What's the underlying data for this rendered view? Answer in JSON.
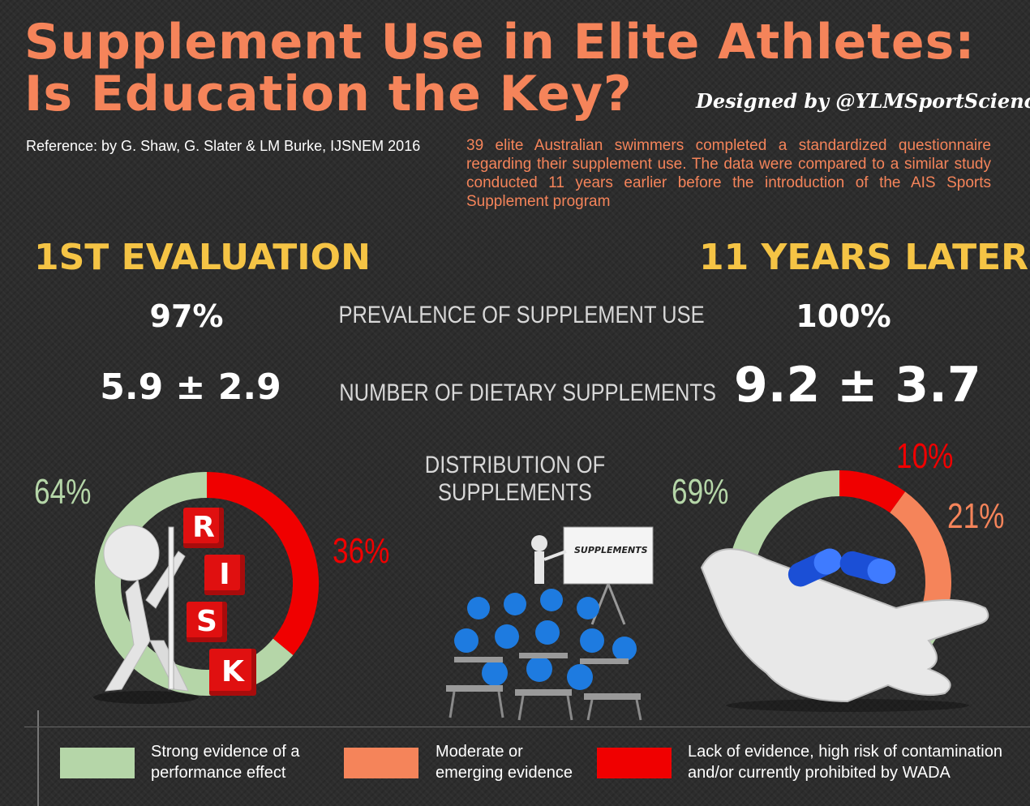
{
  "title_line1": "Supplement Use in Elite Athletes:",
  "title_line2": "Is Education the Key?",
  "credit": "Designed by @YLMSportScience",
  "reference": "Reference: by G. Shaw, G. Slater & LM Burke, IJSNEM 2016",
  "description": "39 elite Australian swimmers completed a standardized questionnaire regarding their supplement use. The data were compared to a similar study conducted 11 years earlier before the introduction of the AIS Sports Supplement program",
  "phases": {
    "first": "1st evaluation",
    "later": "11 years later"
  },
  "metrics": {
    "prevalence": {
      "label": "PREVALENCE OF SUPPLEMENT USE",
      "first": "97%",
      "later": "100%"
    },
    "count": {
      "label": "NUMBER OF DIETARY SUPPLEMENTS",
      "first": "5.9 ± 2.9",
      "later": "9.2 ± 3.7"
    }
  },
  "distribution_label_line1": "DISTRIBUTION OF",
  "distribution_label_line2": "SUPPLEMENTS",
  "board_text": "SUPPLEMENTS",
  "risk_letters": [
    "R",
    "I",
    "S",
    "K"
  ],
  "chart_data": [
    {
      "type": "pie",
      "categories": [
        "Strong evidence",
        "Lack of evidence"
      ],
      "values": [
        64,
        36
      ],
      "labels": [
        "64%",
        "36%"
      ],
      "colors": [
        "#b5d6a8",
        "#f00000"
      ]
    },
    {
      "type": "pie",
      "categories": [
        "Strong evidence",
        "Lack of evidence",
        "Moderate or emerging evidence"
      ],
      "values": [
        69,
        10,
        21
      ],
      "labels": [
        "69%",
        "10%",
        "21%"
      ],
      "colors": [
        "#b5d6a8",
        "#f00000",
        "#f5845a"
      ]
    }
  ],
  "legend": [
    {
      "line1": "Strong evidence of a",
      "line2": "performance effect",
      "color": "#b5d6a8"
    },
    {
      "line1": "Moderate or",
      "line2": "emerging evidence",
      "color": "#f5845a"
    },
    {
      "line1": "Lack of evidence, high risk of contamination",
      "line2": "and/or currently prohibited by WADA",
      "color": "#f00000"
    }
  ]
}
